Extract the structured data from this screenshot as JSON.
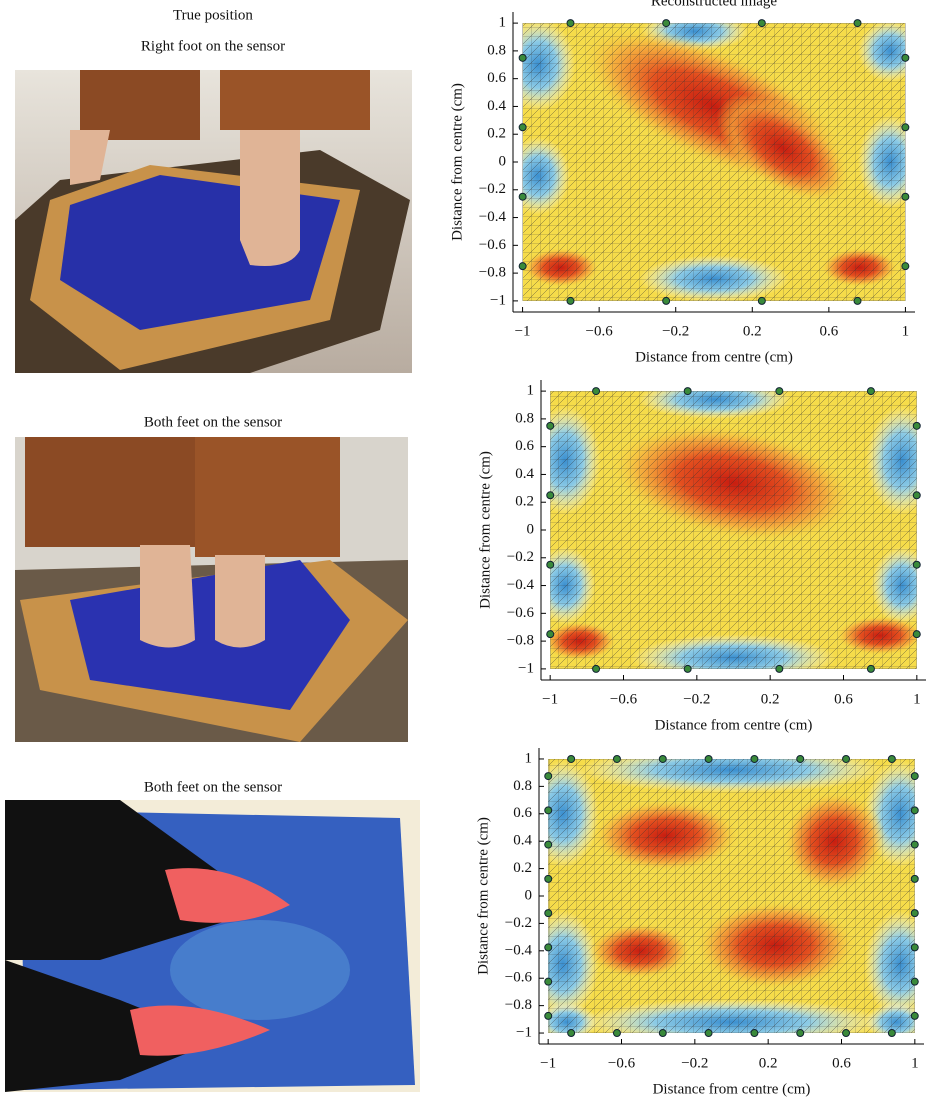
{
  "photos": [
    {
      "heading": "True position",
      "caption": "Right foot on the sensor"
    },
    {
      "caption": "Both feet on the sensor"
    },
    {
      "caption": "Both feet on the sensor"
    }
  ],
  "chart_data": [
    {
      "type": "heatmap",
      "title": "Reconstructed image",
      "xlabel": "Distance from centre (cm)",
      "ylabel": "Distance from centre (cm)",
      "xlim": [
        -1.05,
        1.05
      ],
      "ylim": [
        -1.08,
        1.08
      ],
      "xticks": [
        {
          "value": -1,
          "label": "−1"
        },
        {
          "value": -0.6,
          "label": "−0.6"
        },
        {
          "value": -0.2,
          "label": "−0.2"
        },
        0.2,
        0.6,
        1
      ],
      "yticks": [
        1,
        0.8,
        0.6,
        0.4,
        0.2,
        0,
        {
          "value": -0.2,
          "label": "−0.2"
        },
        {
          "value": -0.4,
          "label": "−0.4"
        },
        {
          "value": -0.6,
          "label": "−0.6"
        },
        {
          "value": -0.8,
          "label": "−0.8"
        },
        {
          "value": -1,
          "label": "−1"
        }
      ]
    },
    {
      "type": "heatmap",
      "xlabel": "Distance from centre (cm)",
      "ylabel": "Distance from centre (cm)",
      "xlim": [
        -1.05,
        1.05
      ],
      "ylim": [
        -1.08,
        1.08
      ],
      "xticks": [
        {
          "value": -1,
          "label": "−1"
        },
        {
          "value": -0.6,
          "label": "−0.6"
        },
        {
          "value": -0.2,
          "label": "−0.2"
        },
        0.2,
        0.6,
        1
      ],
      "yticks": [
        1,
        0.8,
        0.6,
        0.4,
        0.2,
        0,
        {
          "value": -0.2,
          "label": "−0.2"
        },
        {
          "value": -0.4,
          "label": "−0.4"
        },
        {
          "value": -0.6,
          "label": "−0.6"
        },
        {
          "value": -0.8,
          "label": "−0.8"
        },
        {
          "value": -1,
          "label": "−1"
        }
      ]
    },
    {
      "type": "heatmap",
      "xlabel": "Distance from centre (cm)",
      "ylabel": "Distance from centre (cm)",
      "xlim": [
        -1.05,
        1.05
      ],
      "ylim": [
        -1.08,
        1.08
      ],
      "xticks": [
        {
          "value": -1,
          "label": "−1"
        },
        {
          "value": -0.6,
          "label": "−0.6"
        },
        {
          "value": -0.2,
          "label": "−0.2"
        },
        0.2,
        0.6,
        1
      ],
      "yticks": [
        1,
        0.8,
        0.6,
        0.4,
        0.2,
        0,
        {
          "value": -0.2,
          "label": "−0.2"
        },
        {
          "value": -0.4,
          "label": "−0.4"
        },
        {
          "value": -0.6,
          "label": "−0.6"
        },
        {
          "value": -0.8,
          "label": "−0.8"
        },
        {
          "value": -1,
          "label": "−1"
        }
      ]
    }
  ]
}
